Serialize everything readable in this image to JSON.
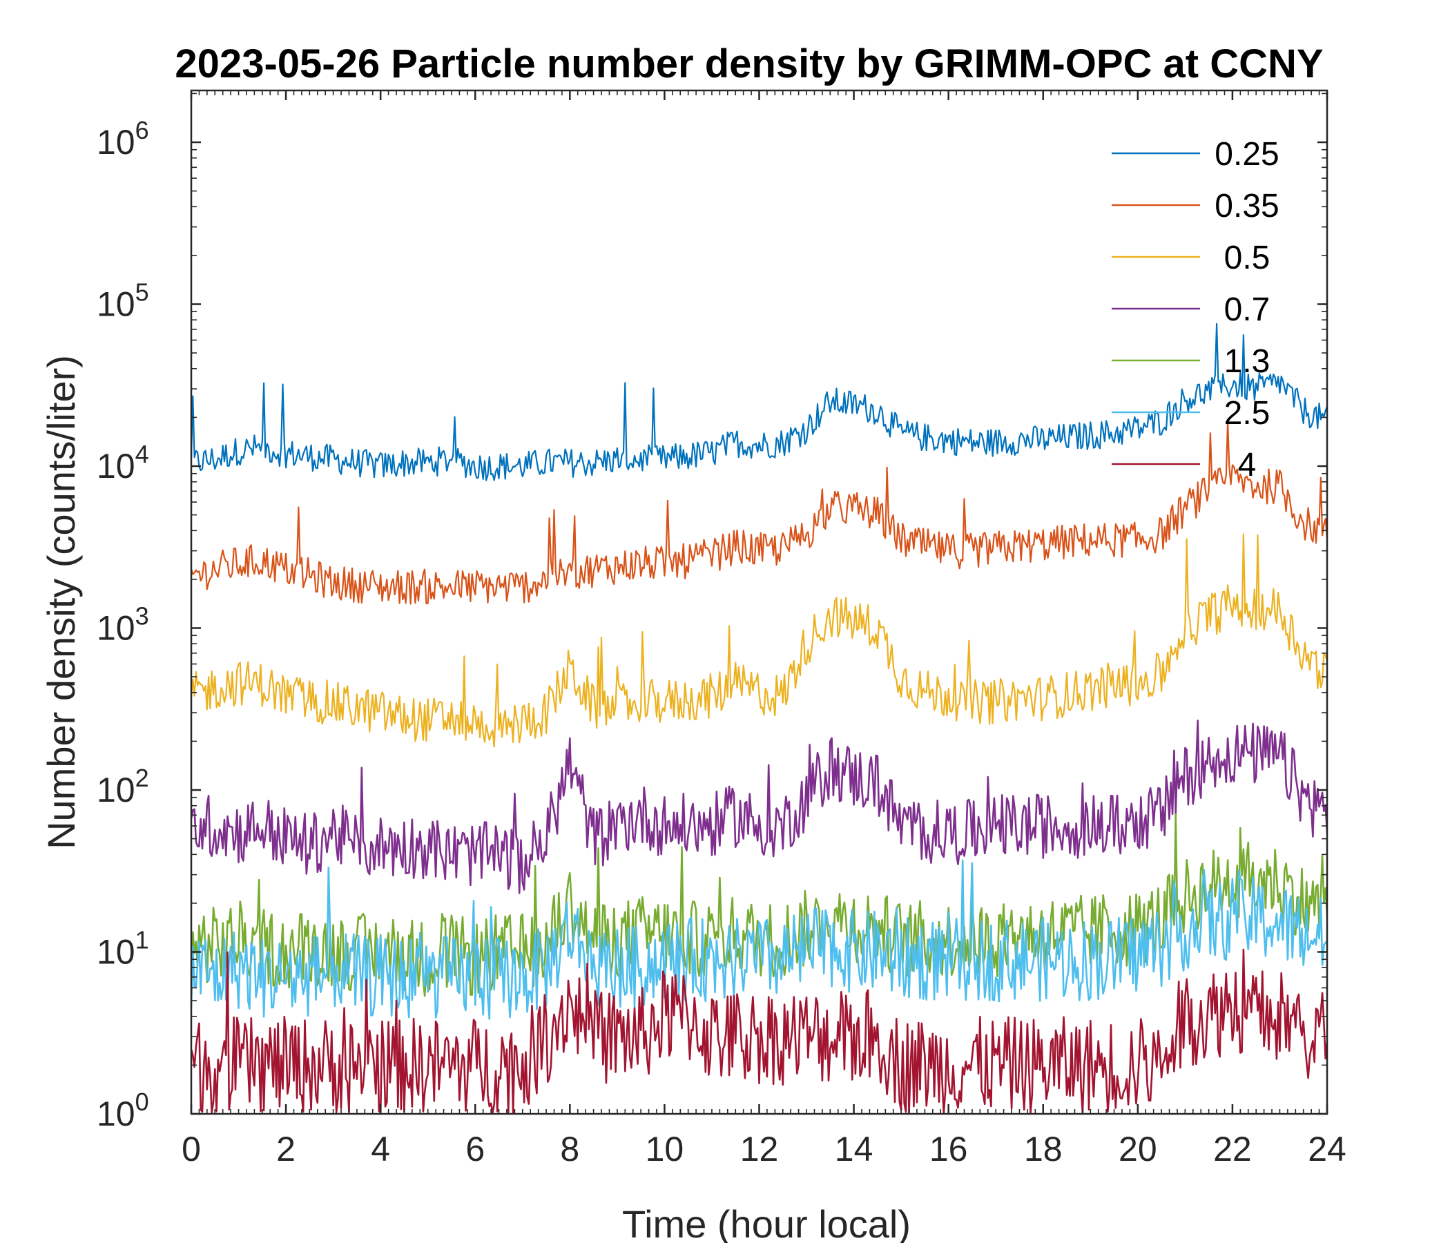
{
  "chart_data": {
    "type": "line",
    "title": "2023-05-26 Particle number density by GRIMM-OPC at CCNY",
    "xlabel": "Time (hour local)",
    "ylabel": "Number density (counts/liter)",
    "xlim": [
      0,
      24
    ],
    "ylim": [
      1,
      2000000
    ],
    "yscale": "log",
    "xticks": [
      0,
      2,
      4,
      6,
      8,
      10,
      12,
      14,
      16,
      18,
      20,
      22,
      24
    ],
    "xtick_labels": [
      "0",
      "2",
      "4",
      "6",
      "8",
      "10",
      "12",
      "14",
      "16",
      "18",
      "20",
      "22",
      "24"
    ],
    "yticks": [
      1,
      10,
      100,
      1000,
      10000,
      100000,
      1000000
    ],
    "ytick_labels": [
      {
        "base": "10",
        "exp": "0"
      },
      {
        "base": "10",
        "exp": "1"
      },
      {
        "base": "10",
        "exp": "2"
      },
      {
        "base": "10",
        "exp": "3"
      },
      {
        "base": "10",
        "exp": "4"
      },
      {
        "base": "10",
        "exp": "5"
      },
      {
        "base": "10",
        "exp": "6"
      }
    ],
    "legend_position": "top-right",
    "x": [
      0,
      0.5,
      1,
      1.5,
      2,
      2.5,
      3,
      3.5,
      4,
      4.5,
      5,
      5.5,
      6,
      6.5,
      7,
      7.5,
      8,
      8.5,
      9,
      9.5,
      10,
      10.5,
      11,
      11.5,
      12,
      12.5,
      13,
      13.5,
      14,
      14.5,
      15,
      15.5,
      16,
      16.5,
      17,
      17.5,
      18,
      18.5,
      19,
      19.5,
      20,
      20.5,
      21,
      21.5,
      22,
      22.5,
      23,
      23.5,
      24
    ],
    "series": [
      {
        "name": "0.25",
        "color": "#0072BD",
        "values": [
          10500,
          11000,
          12500,
          13000,
          12000,
          11500,
          11000,
          10500,
          10000,
          10500,
          10500,
          11000,
          10000,
          10000,
          10000,
          10500,
          10500,
          10500,
          11000,
          11000,
          11000,
          11500,
          12000,
          14000,
          13500,
          14000,
          17000,
          25000,
          24000,
          22000,
          16000,
          15000,
          14500,
          14000,
          14000,
          14500,
          14500,
          15000,
          15500,
          16000,
          17000,
          19000,
          26000,
          29000,
          32000,
          30000,
          33000,
          22000,
          19000
        ]
      },
      {
        "name": "0.35",
        "color": "#D95319",
        "values": [
          2100,
          2300,
          2500,
          2600,
          2300,
          2100,
          1900,
          1850,
          1800,
          1800,
          1800,
          1800,
          1800,
          1800,
          1800,
          2000,
          2200,
          2300,
          2400,
          2500,
          2500,
          2600,
          2800,
          3200,
          3000,
          3100,
          3800,
          5500,
          5500,
          5000,
          3500,
          3200,
          3000,
          3000,
          3100,
          3200,
          3300,
          3400,
          3500,
          3500,
          3500,
          3800,
          5500,
          7000,
          8500,
          7500,
          7500,
          4500,
          3800
        ]
      },
      {
        "name": "0.5",
        "color": "#EDB120",
        "values": [
          380,
          430,
          460,
          450,
          380,
          360,
          340,
          320,
          300,
          280,
          270,
          280,
          260,
          240,
          260,
          300,
          560,
          320,
          330,
          350,
          350,
          360,
          380,
          450,
          400,
          380,
          800,
          1200,
          1100,
          1000,
          500,
          400,
          380,
          350,
          350,
          370,
          370,
          390,
          420,
          450,
          450,
          520,
          1000,
          1200,
          1400,
          1350,
          1300,
          700,
          500
        ]
      },
      {
        "name": "0.7",
        "color": "#7E2F8E",
        "values": [
          60,
          60,
          55,
          60,
          50,
          45,
          55,
          45,
          45,
          45,
          45,
          40,
          40,
          40,
          35,
          50,
          150,
          50,
          60,
          70,
          60,
          60,
          60,
          70,
          60,
          60,
          90,
          140,
          120,
          110,
          60,
          55,
          55,
          55,
          60,
          60,
          60,
          60,
          60,
          60,
          65,
          70,
          120,
          150,
          170,
          165,
          160,
          90,
          70
        ]
      },
      {
        "name": "1.3",
        "color": "#77AC30",
        "values": [
          11,
          11,
          12,
          11,
          10,
          11,
          10,
          10,
          10,
          10,
          9,
          10,
          9,
          10,
          10,
          11,
          20,
          12,
          12,
          13,
          13,
          12,
          12,
          13,
          12,
          12,
          14,
          16,
          15,
          14,
          12,
          12,
          12,
          12,
          12,
          13,
          13,
          13,
          13,
          14,
          14,
          16,
          22,
          25,
          28,
          28,
          27,
          20,
          18
        ]
      },
      {
        "name": "2.5",
        "color": "#4DBEEE",
        "values": [
          8,
          7,
          8,
          7,
          7,
          7,
          8,
          7,
          7,
          7,
          7,
          7,
          7,
          7,
          7,
          8,
          14,
          8,
          8,
          8,
          9,
          9,
          9,
          9,
          9,
          9,
          10,
          11,
          10,
          10,
          9,
          9,
          9,
          9,
          9,
          9,
          9,
          9,
          9,
          9,
          10,
          11,
          14,
          15,
          16,
          16,
          15,
          13,
          12
        ]
      },
      {
        "name": "4",
        "color": "#A2142F",
        "values": [
          2,
          2,
          2,
          2,
          2,
          2,
          2,
          2,
          2,
          2,
          2,
          2,
          2,
          2,
          2,
          3,
          5,
          3,
          3,
          3,
          4,
          4,
          3,
          3,
          3,
          3,
          3,
          3,
          3,
          3,
          2,
          2,
          2,
          2,
          2,
          2,
          2,
          2,
          2,
          2,
          2,
          2,
          4,
          4,
          5,
          4,
          4,
          3,
          3
        ]
      }
    ]
  }
}
